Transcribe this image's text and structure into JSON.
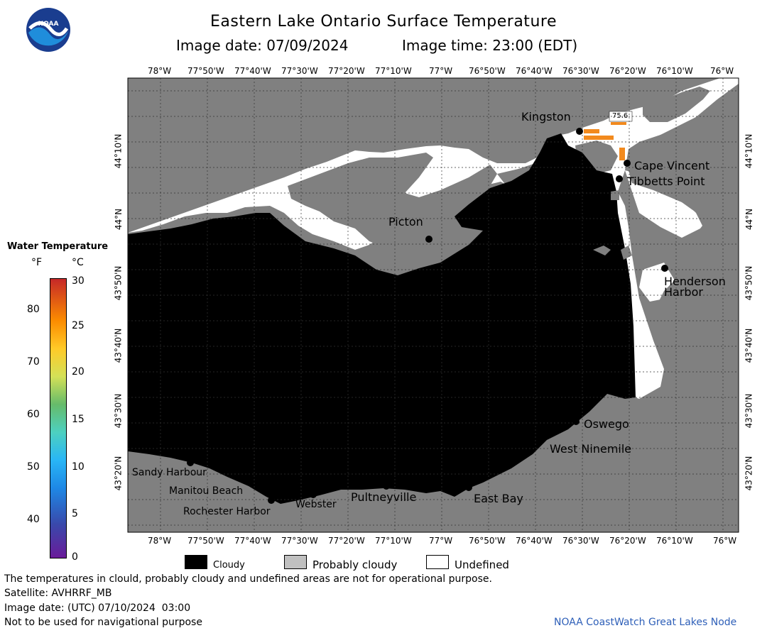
{
  "header": {
    "title": "Eastern Lake Ontario Surface Temperature",
    "image_date_label": "Image date: 07/09/2024",
    "image_time_label": "Image time: 23:00 (EDT)"
  },
  "logo": {
    "text": "NOAA"
  },
  "lon_labels": [
    "78°W",
    "77°50'W",
    "77°40'W",
    "77°30'W",
    "77°20'W",
    "77°10'W",
    "77°W",
    "76°50'W",
    "76°40'W",
    "76°30'W",
    "76°20'W",
    "76°10'W",
    "76°W"
  ],
  "lon_labels_top_last": "76°W",
  "lat_labels": [
    "44°10'N",
    "44°N",
    "43°50'N",
    "43°40'N",
    "43°30'N",
    "43°20'N"
  ],
  "places": [
    {
      "name": "Kingston"
    },
    {
      "name": "Cape Vincent"
    },
    {
      "name": "Tibbetts Point"
    },
    {
      "name": "Picton"
    },
    {
      "name": "Henderson"
    },
    {
      "name": "Harbor"
    },
    {
      "name": "Oswego"
    },
    {
      "name": "West Ninemile"
    },
    {
      "name": "East Bay"
    },
    {
      "name": "Pultneyville"
    },
    {
      "name": "Webster"
    },
    {
      "name": "Rochester Harbor"
    },
    {
      "name": "Manitou Beach"
    },
    {
      "name": "Sandy Harbour"
    }
  ],
  "buoy_label": "75.6",
  "colorbar": {
    "title": "Water Temperature",
    "unit_f": "°F",
    "unit_c": "°C",
    "f_ticks": [
      "80",
      "70",
      "60",
      "50",
      "40"
    ],
    "c_ticks": [
      "30",
      "25",
      "20",
      "15",
      "10",
      "5",
      "0"
    ]
  },
  "key": {
    "cloudy": "Cloudy",
    "probably_cloudy": "Probably cloudy",
    "undefined": "Undefined"
  },
  "footer": {
    "disclaimer": "The temperatures in clould, probably cloudy and undefined areas are not for operational purpose.",
    "satellite": "Satellite: AVHRRF_MB",
    "utc_date": "Image date: (UTC) 07/10/2024  03:00",
    "nav_warning": "Not to be used for navigational purpose",
    "credit": "NOAA CoastWatch Great Lakes Node"
  },
  "colors": {
    "land": "#808080",
    "cloudy": "#000000",
    "undefined": "#ffffff",
    "warm_water": "#f28a1e",
    "credit": "#2e5fb8"
  }
}
